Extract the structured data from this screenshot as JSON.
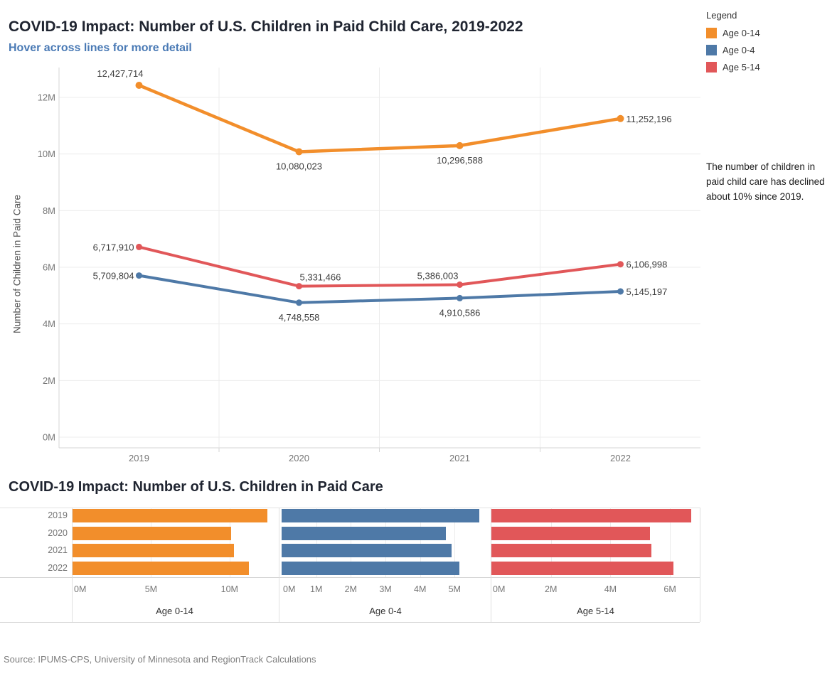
{
  "header": {
    "title": "COVID-19 Impact: Number of U.S. Children in Paid Child Care, 2019-2022",
    "subtitle": "Hover across lines for more detail"
  },
  "legend": {
    "title": "Legend",
    "items": [
      {
        "label": "Age 0-14",
        "color": "#F28E2B"
      },
      {
        "label": "Age 0-4",
        "color": "#4E79A7"
      },
      {
        "label": "Age 5-14",
        "color": "#E15759"
      }
    ]
  },
  "annotation": {
    "text": "The number of children in paid child care has declined about 10% since 2019."
  },
  "line_chart": {
    "y_axis_title": "Number of Children in Paid Care"
  },
  "bar_chart": {
    "title": "COVID-19 Impact: Number of U.S. Children in Paid Care"
  },
  "source": "Source: IPUMS-CPS, University of Minnesota and RegionTrack Calculations",
  "chart_data": [
    {
      "type": "line",
      "title": "COVID-19 Impact: Number of U.S. Children in Paid Child Care, 2019-2022",
      "subtitle": "Hover across lines for more detail",
      "xlabel": "",
      "ylabel": "Number of Children in Paid Care",
      "x": [
        "2019",
        "2020",
        "2021",
        "2022"
      ],
      "ylim": [
        0,
        13000000
      ],
      "yticks": [
        {
          "value": 0,
          "label": "0M"
        },
        {
          "value": 2000000,
          "label": "2M"
        },
        {
          "value": 4000000,
          "label": "4M"
        },
        {
          "value": 6000000,
          "label": "6M"
        },
        {
          "value": 8000000,
          "label": "8M"
        },
        {
          "value": 10000000,
          "label": "10M"
        },
        {
          "value": 12000000,
          "label": "12M"
        }
      ],
      "grid": "horizontal",
      "legend_position": "top-right",
      "series": [
        {
          "name": "Age 0-14",
          "color": "#F28E2B",
          "values": [
            12427714,
            10080023,
            10296588,
            11252196
          ],
          "labels": [
            "12,427,714",
            "10,080,023",
            "10,296,588",
            "11,252,196"
          ],
          "label_placement": [
            "above-left",
            "below",
            "below",
            "right"
          ]
        },
        {
          "name": "Age 5-14",
          "color": "#E15759",
          "values": [
            6717910,
            5331466,
            5386003,
            6106998
          ],
          "labels": [
            "6,717,910",
            "5,331,466",
            "5,386,003",
            "6,106,998"
          ],
          "label_placement": [
            "left",
            "above-start",
            "above-end",
            "right"
          ]
        },
        {
          "name": "Age 0-4",
          "color": "#4E79A7",
          "values": [
            5709804,
            4748558,
            4910586,
            5145197
          ],
          "labels": [
            "5,709,804",
            "4,748,558",
            "4,910,586",
            "5,145,197"
          ],
          "label_placement": [
            "left",
            "below",
            "below",
            "right"
          ]
        }
      ]
    },
    {
      "type": "bar",
      "title": "COVID-19 Impact: Number of U.S. Children in Paid Care",
      "orientation": "horizontal",
      "categories": [
        "2019",
        "2020",
        "2021",
        "2022"
      ],
      "panels": [
        {
          "name": "Age 0-14",
          "color": "#F28E2B",
          "xmax": 13000000,
          "xticks": [
            {
              "value": 0,
              "label": "0M"
            },
            {
              "value": 5000000,
              "label": "5M"
            },
            {
              "value": 10000000,
              "label": "10M"
            }
          ],
          "values": [
            12427714,
            10080023,
            10296588,
            11252196
          ]
        },
        {
          "name": "Age 0-4",
          "color": "#4E79A7",
          "xmax": 6000000,
          "xticks": [
            {
              "value": 0,
              "label": "0M"
            },
            {
              "value": 1000000,
              "label": "1M"
            },
            {
              "value": 2000000,
              "label": "2M"
            },
            {
              "value": 3000000,
              "label": "3M"
            },
            {
              "value": 4000000,
              "label": "4M"
            },
            {
              "value": 5000000,
              "label": "5M"
            }
          ],
          "values": [
            5709804,
            4748558,
            4910586,
            5145197
          ]
        },
        {
          "name": "Age 5-14",
          "color": "#E15759",
          "xmax": 7000000,
          "xticks": [
            {
              "value": 0,
              "label": "0M"
            },
            {
              "value": 2000000,
              "label": "2M"
            },
            {
              "value": 4000000,
              "label": "4M"
            },
            {
              "value": 6000000,
              "label": "6M"
            }
          ],
          "values": [
            6717910,
            5331466,
            5386003,
            6106998
          ]
        }
      ]
    }
  ]
}
